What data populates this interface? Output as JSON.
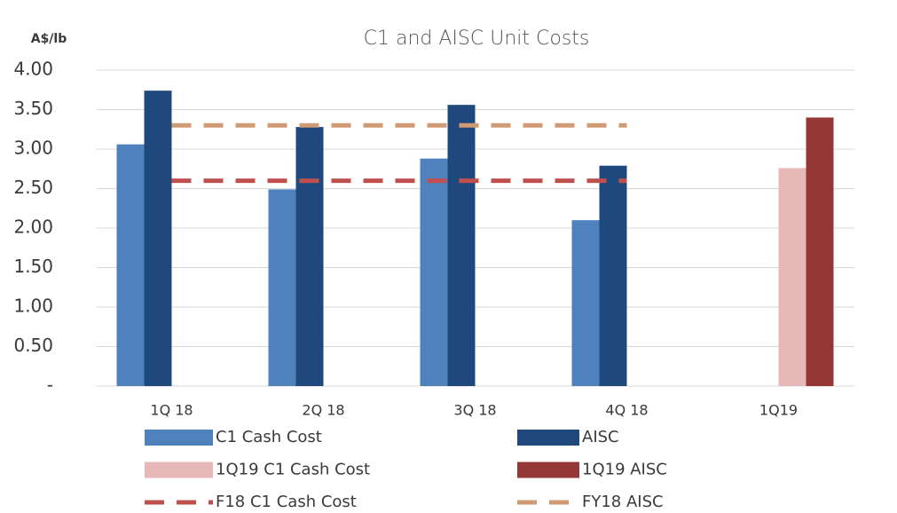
{
  "chart_data": {
    "type": "bar",
    "title": "C1 and AISC Unit Costs",
    "y_label": "A$/lb",
    "categories": [
      "1Q 18",
      "2Q 18",
      "3Q 18",
      "4Q 18",
      "1Q19"
    ],
    "series": [
      {
        "name": "C1 Cash Cost",
        "type": "bar",
        "color": "#4f81bd",
        "values": [
          3.06,
          2.49,
          2.88,
          2.1,
          null
        ]
      },
      {
        "name": "AISC",
        "type": "bar",
        "color": "#1f497d",
        "values": [
          3.74,
          3.28,
          3.56,
          2.79,
          null
        ]
      },
      {
        "name": "1Q19 C1 Cash Cost",
        "type": "bar",
        "color": "#e6b9b8",
        "values": [
          null,
          null,
          null,
          null,
          2.76
        ]
      },
      {
        "name": "1Q19 AISC",
        "type": "bar",
        "color": "#953735",
        "values": [
          null,
          null,
          null,
          null,
          3.4
        ]
      },
      {
        "name": "F18 C1 Cash Cost",
        "type": "line",
        "color": "#c0504d",
        "values": [
          2.6,
          2.6,
          2.6,
          2.6,
          null
        ]
      },
      {
        "name": "FY18 AISC",
        "type": "line",
        "color": "#d09a74",
        "values": [
          3.3,
          3.3,
          3.3,
          3.3,
          null
        ]
      }
    ],
    "ylim": [
      0,
      4
    ],
    "yticks": [
      {
        "value": 0,
        "label": "-"
      },
      {
        "value": 0.5,
        "label": "0.50"
      },
      {
        "value": 1,
        "label": "1.00"
      },
      {
        "value": 1.5,
        "label": "1.50"
      },
      {
        "value": 2,
        "label": "2.00"
      },
      {
        "value": 2.5,
        "label": "2.50"
      },
      {
        "value": 3,
        "label": "3.00"
      },
      {
        "value": 3.5,
        "label": "3.50"
      },
      {
        "value": 4,
        "label": "4.00"
      }
    ],
    "grid": true
  }
}
